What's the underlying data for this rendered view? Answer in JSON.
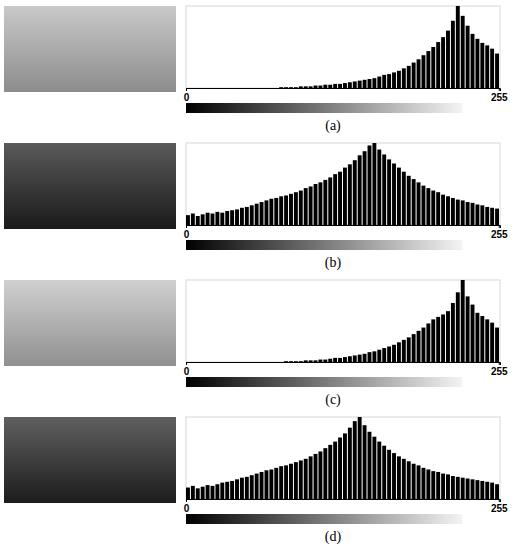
{
  "chart_data": [
    {
      "type": "histogram",
      "title": "(a)",
      "color": "#000000",
      "tick_labels": "x",
      "bins": [
        0,
        4,
        8,
        12,
        16,
        20,
        24,
        28,
        32,
        36,
        40,
        44,
        48,
        52,
        56,
        60,
        64,
        68,
        72,
        76,
        80,
        84,
        88,
        92,
        96,
        100,
        104,
        108,
        112,
        116,
        120,
        124,
        128,
        132,
        136,
        140,
        144,
        148,
        152,
        156,
        160,
        164,
        168,
        172,
        176,
        180,
        184,
        188,
        192,
        196,
        200,
        204,
        208,
        212,
        216,
        220,
        224,
        228,
        232,
        236,
        240,
        244,
        248,
        252,
        256
      ],
      "counts": [
        0,
        0,
        0,
        0,
        0,
        0,
        0,
        0,
        0,
        0,
        0,
        0,
        0,
        0,
        0,
        0,
        0,
        0,
        0,
        1,
        1,
        1,
        1,
        2,
        2,
        2,
        3,
        3,
        4,
        4,
        5,
        5,
        6,
        7,
        8,
        9,
        10,
        11,
        12,
        14,
        16,
        17,
        19,
        21,
        24,
        27,
        31,
        35,
        40,
        45,
        50,
        56,
        62,
        70,
        82,
        100,
        88,
        76,
        66,
        60,
        55,
        52,
        48,
        42
      ],
      "xlim": [
        0,
        256
      ],
      "xticks": [
        0,
        255
      ],
      "ylim": [
        0,
        100
      ]
    },
    {
      "type": "histogram",
      "title": "(b)",
      "color": "#000000",
      "tick_labels": "x",
      "bins": [
        0,
        4,
        8,
        12,
        16,
        20,
        24,
        28,
        32,
        36,
        40,
        44,
        48,
        52,
        56,
        60,
        64,
        68,
        72,
        76,
        80,
        84,
        88,
        92,
        96,
        100,
        104,
        108,
        112,
        116,
        120,
        124,
        128,
        132,
        136,
        140,
        144,
        148,
        152,
        156,
        160,
        164,
        168,
        172,
        176,
        180,
        184,
        188,
        192,
        196,
        200,
        204,
        208,
        212,
        216,
        220,
        224,
        228,
        232,
        236,
        240,
        244,
        248,
        252,
        256
      ],
      "counts": [
        12,
        14,
        11,
        13,
        15,
        14,
        16,
        15,
        17,
        18,
        19,
        21,
        22,
        24,
        26,
        28,
        30,
        32,
        33,
        35,
        36,
        38,
        40,
        42,
        45,
        47,
        50,
        52,
        55,
        58,
        62,
        65,
        70,
        74,
        79,
        85,
        90,
        97,
        100,
        92,
        86,
        80,
        75,
        70,
        65,
        60,
        56,
        52,
        48,
        45,
        42,
        40,
        37,
        35,
        33,
        31,
        30,
        28,
        27,
        25,
        24,
        22,
        21,
        20
      ],
      "xlim": [
        0,
        256
      ],
      "xticks": [
        0,
        255
      ],
      "ylim": [
        0,
        100
      ]
    },
    {
      "type": "histogram",
      "title": "(c)",
      "color": "#000000",
      "tick_labels": "x",
      "bins": [
        0,
        4,
        8,
        12,
        16,
        20,
        24,
        28,
        32,
        36,
        40,
        44,
        48,
        52,
        56,
        60,
        64,
        68,
        72,
        76,
        80,
        84,
        88,
        92,
        96,
        100,
        104,
        108,
        112,
        116,
        120,
        124,
        128,
        132,
        136,
        140,
        144,
        148,
        152,
        156,
        160,
        164,
        168,
        172,
        176,
        180,
        184,
        188,
        192,
        196,
        200,
        204,
        208,
        212,
        216,
        220,
        224,
        228,
        232,
        236,
        240,
        244,
        248,
        252,
        256
      ],
      "counts": [
        0,
        0,
        0,
        0,
        0,
        0,
        0,
        0,
        0,
        0,
        0,
        0,
        0,
        0,
        0,
        0,
        0,
        0,
        0,
        0,
        1,
        1,
        1,
        1,
        2,
        2,
        2,
        3,
        3,
        4,
        5,
        5,
        6,
        7,
        8,
        9,
        10,
        12,
        13,
        15,
        17,
        19,
        21,
        24,
        27,
        30,
        34,
        38,
        42,
        47,
        52,
        55,
        58,
        62,
        72,
        85,
        100,
        80,
        70,
        60,
        56,
        52,
        48,
        42
      ],
      "xlim": [
        0,
        256
      ],
      "xticks": [
        0,
        255
      ],
      "ylim": [
        0,
        100
      ]
    },
    {
      "type": "histogram",
      "title": "(d)",
      "color": "#000000",
      "tick_labels": "x",
      "bins": [
        0,
        4,
        8,
        12,
        16,
        20,
        24,
        28,
        32,
        36,
        40,
        44,
        48,
        52,
        56,
        60,
        64,
        68,
        72,
        76,
        80,
        84,
        88,
        92,
        96,
        100,
        104,
        108,
        112,
        116,
        120,
        124,
        128,
        132,
        136,
        140,
        144,
        148,
        152,
        156,
        160,
        164,
        168,
        172,
        176,
        180,
        184,
        188,
        192,
        196,
        200,
        204,
        208,
        212,
        216,
        220,
        224,
        228,
        232,
        236,
        240,
        244,
        248,
        252,
        256
      ],
      "counts": [
        14,
        16,
        13,
        15,
        17,
        16,
        18,
        20,
        21,
        22,
        24,
        26,
        27,
        29,
        31,
        33,
        35,
        36,
        38,
        40,
        41,
        43,
        45,
        47,
        49,
        52,
        55,
        58,
        62,
        66,
        70,
        75,
        80,
        87,
        95,
        100,
        90,
        82,
        76,
        70,
        65,
        60,
        56,
        52,
        49,
        46,
        43,
        41,
        38,
        36,
        34,
        33,
        31,
        30,
        28,
        27,
        26,
        25,
        24,
        23,
        22,
        21,
        20,
        18
      ],
      "xlim": [
        0,
        256
      ],
      "xticks": [
        0,
        255
      ],
      "ylim": [
        0,
        100
      ]
    }
  ]
}
